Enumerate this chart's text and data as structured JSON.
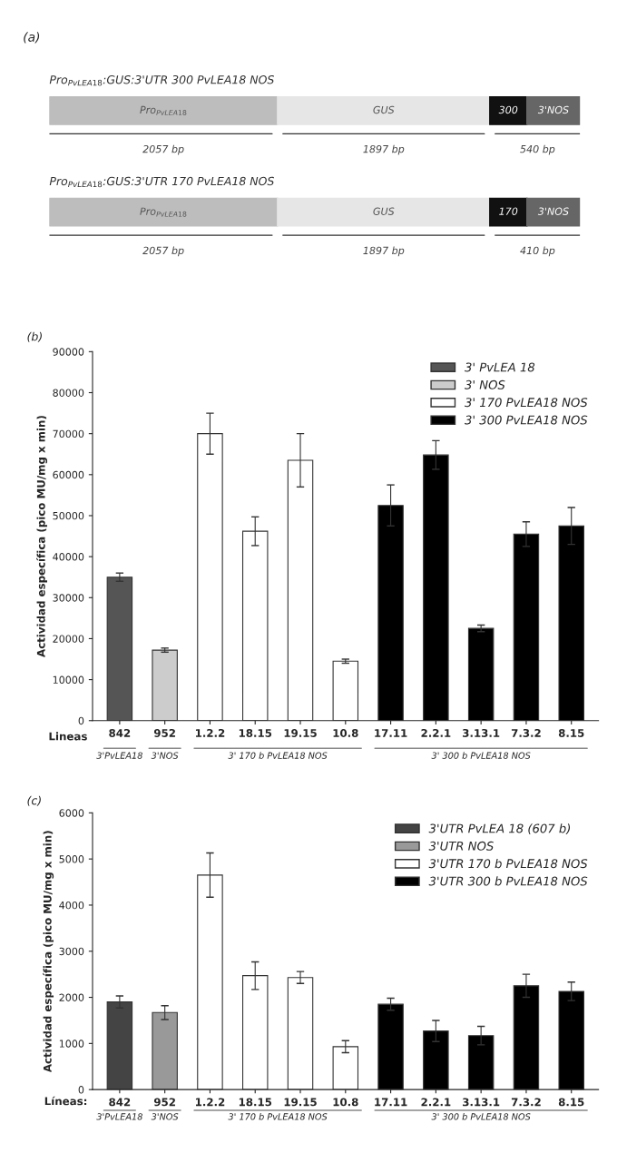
{
  "chart_data": [
    {
      "type": "other",
      "title": "(a)",
      "annotations": [
        "Pro$_{PvLEA18}$:GUS:3'UTR 300 PvLEA18 NOS",
        "Pro$_{PvLEA18}$",
        "GUS",
        "300",
        "3'NOS",
        "2057 bp",
        "1897 bp",
        "540 bp",
        "Pro$_{PvLEA18}$:GUS:3'UTR 170 PvLEA18 NOS",
        "Pro$_{PvLEA18}$",
        "GUS",
        "170",
        "3'NOS",
        "2057 bp",
        "1897 bp",
        "410 bp"
      ]
    },
    {
      "type": "bar",
      "title": "(b)",
      "xlabel": "Lineas",
      "ylabel": "Actividad específica (pico MU/mg x min)",
      "categories": [
        "842",
        "952",
        "1.2.2",
        "18.15",
        "19.15",
        "10.8",
        "17.11",
        "2.2.1",
        "3.13.1",
        "7.3.2",
        "8.15"
      ],
      "ylim": [
        0,
        90000
      ],
      "yticks": [
        0,
        10000,
        20000,
        30000,
        40000,
        50000,
        60000,
        70000,
        80000,
        90000
      ],
      "legend": "top right",
      "grid": false,
      "series": [
        {
          "name": "3' PvLEA 18",
          "color": "#555555",
          "values": [
            35000,
            null,
            null,
            null,
            null,
            null,
            null,
            null,
            null,
            null,
            null
          ],
          "errors": [
            1000,
            null,
            null,
            null,
            null,
            null,
            null,
            null,
            null,
            null,
            null
          ]
        },
        {
          "name": "3' NOS",
          "color": "#cccccc",
          "values": [
            null,
            17200,
            null,
            null,
            null,
            null,
            null,
            null,
            null,
            null,
            null
          ],
          "errors": [
            null,
            500,
            null,
            null,
            null,
            null,
            null,
            null,
            null,
            null,
            null
          ]
        },
        {
          "name": "3' 170 PvLEA18 NOS",
          "color": "#ffffff",
          "values": [
            null,
            null,
            70000,
            46200,
            63500,
            14500,
            null,
            null,
            null,
            null,
            null
          ],
          "errors": [
            null,
            null,
            5000,
            3500,
            6500,
            500,
            null,
            null,
            null,
            null,
            null
          ]
        },
        {
          "name": "3' 300 PvLEA18 NOS",
          "color": "#000000",
          "values": [
            null,
            null,
            null,
            null,
            null,
            null,
            52500,
            64800,
            22500,
            45500,
            47500
          ],
          "errors": [
            null,
            null,
            null,
            null,
            null,
            null,
            5000,
            3500,
            800,
            3000,
            4500
          ]
        }
      ],
      "annotations": [
        "3'PvLEA18",
        "3'NOS",
        "3' 170 b PvLEA18 NOS",
        "3' 300 b PvLEA18 NOS"
      ]
    },
    {
      "type": "bar",
      "title": "(c)",
      "xlabel": "Líneas:",
      "ylabel": "Actividad específica (pico MU/mg x min)",
      "categories": [
        "842",
        "952",
        "1.2.2",
        "18.15",
        "19.15",
        "10.8",
        "17.11",
        "2.2.1",
        "3.13.1",
        "7.3.2",
        "8.15"
      ],
      "ylim": [
        0,
        6000
      ],
      "yticks": [
        0,
        1000,
        2000,
        3000,
        4000,
        5000,
        6000
      ],
      "legend": "top right",
      "grid": false,
      "series": [
        {
          "name": "3'UTR PvLEA 18 (607 b)",
          "color": "#444444",
          "values": [
            1900,
            null,
            null,
            null,
            null,
            null,
            null,
            null,
            null,
            null,
            null
          ],
          "errors": [
            130,
            null,
            null,
            null,
            null,
            null,
            null,
            null,
            null,
            null,
            null
          ]
        },
        {
          "name": "3'UTR NOS",
          "color": "#999999",
          "values": [
            null,
            1670,
            null,
            null,
            null,
            null,
            null,
            null,
            null,
            null,
            null
          ],
          "errors": [
            null,
            150,
            null,
            null,
            null,
            null,
            null,
            null,
            null,
            null,
            null
          ]
        },
        {
          "name": "3'UTR 170 b PvLEA18 NOS",
          "color": "#ffffff",
          "values": [
            null,
            null,
            4650,
            2470,
            2430,
            930,
            null,
            null,
            null,
            null,
            null
          ],
          "errors": [
            null,
            null,
            480,
            300,
            130,
            130,
            null,
            null,
            null,
            null,
            null
          ]
        },
        {
          "name": "3'UTR 300 b PvLEA18 NOS",
          "color": "#000000",
          "values": [
            null,
            null,
            null,
            null,
            null,
            null,
            1850,
            1270,
            1170,
            2250,
            2130
          ],
          "errors": [
            null,
            null,
            null,
            null,
            null,
            null,
            130,
            230,
            200,
            250,
            200
          ]
        }
      ],
      "annotations": [
        "3'PvLEA18",
        "3'NOS",
        "3' 170 b PvLEA18 NOS",
        "3' 300 b PvLEA18 NOS"
      ]
    }
  ]
}
